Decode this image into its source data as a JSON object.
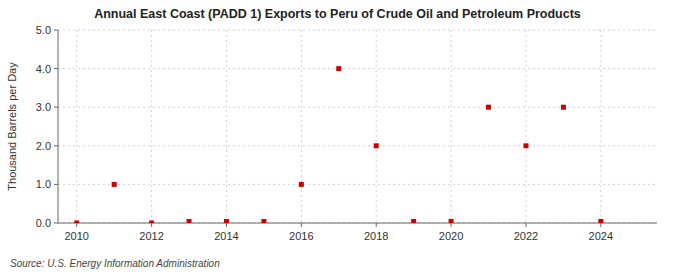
{
  "chart_data": {
    "type": "scatter",
    "title": "Annual East Coast (PADD 1) Exports to Peru of Crude Oil and Petroleum Products",
    "y_label": "Thousand Barrels per Day",
    "annotations": [
      "Source: U.S. Energy Information Administration"
    ],
    "x": [
      2010,
      2011,
      2012,
      2013,
      2014,
      2015,
      2016,
      2017,
      2018,
      2019,
      2020,
      2021,
      2022,
      2023,
      2024
    ],
    "values": [
      0.0,
      1.0,
      0.0,
      0.04,
      0.04,
      0.04,
      1.0,
      4.0,
      2.0,
      0.04,
      0.04,
      3.0,
      2.0,
      3.0,
      0.04
    ],
    "color": "#cc0000",
    "marker": "square",
    "xlim": [
      2009.5,
      2025.5
    ],
    "ylim": [
      0.0,
      5.0
    ],
    "xticks": [
      2010,
      2012,
      2014,
      2016,
      2018,
      2020,
      2022,
      2024
    ],
    "yticks": [
      {
        "value": 0.0,
        "label": "0.0"
      },
      {
        "value": 1.0,
        "label": "1.0"
      },
      {
        "value": 2.0,
        "label": "2.0"
      },
      {
        "value": 3.0,
        "label": "3.0"
      },
      {
        "value": 4.0,
        "label": "4.0"
      },
      {
        "value": 5.0,
        "label": "5.0"
      }
    ],
    "grid": true
  }
}
